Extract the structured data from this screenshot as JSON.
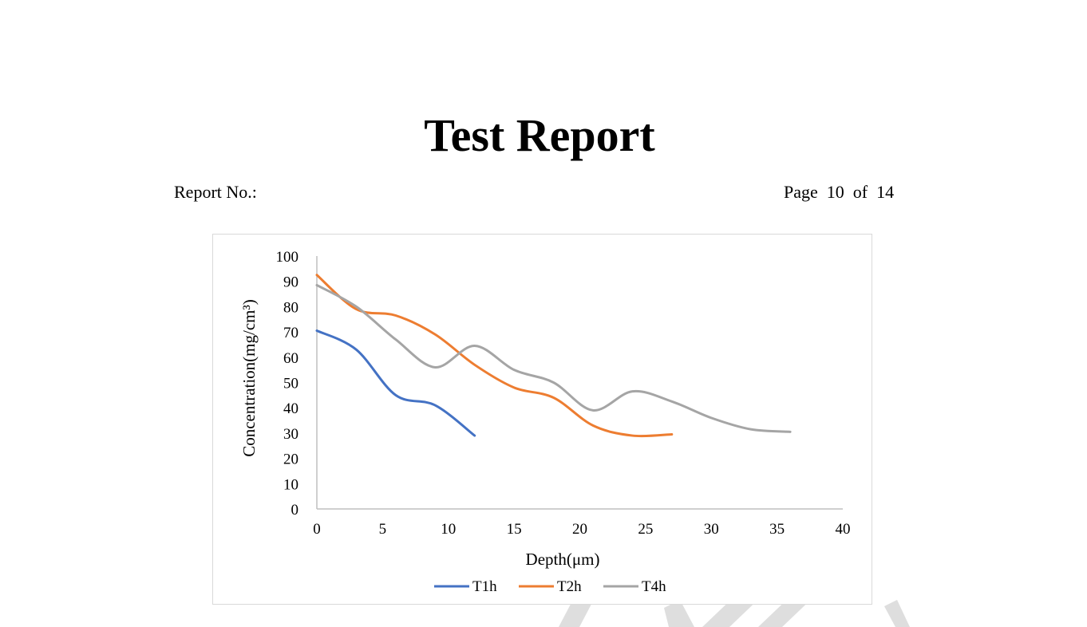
{
  "header": {
    "title": "Test Report",
    "report_no_label": "Report No.:",
    "page_word": "Page",
    "page_number": "10",
    "of_word": "of",
    "page_total": "14"
  },
  "chart_data": {
    "type": "line",
    "xlabel": "Depth(μm)",
    "ylabel": "Concentration(mg/cm³)",
    "xlim": [
      0,
      40
    ],
    "ylim": [
      0,
      100
    ],
    "xticks": [
      0,
      5,
      10,
      15,
      20,
      25,
      30,
      35,
      40
    ],
    "yticks": [
      0,
      10,
      20,
      30,
      40,
      50,
      60,
      70,
      80,
      90,
      100
    ],
    "grid": false,
    "legend_position": "bottom",
    "smooth": true,
    "series": [
      {
        "name": "T1h",
        "color": "#4472c4",
        "x": [
          0,
          3,
          6,
          9,
          12
        ],
        "y": [
          70.5,
          63,
          45,
          41,
          29
        ]
      },
      {
        "name": "T2h",
        "color": "#ed7d31",
        "x": [
          0,
          3,
          6,
          9,
          12,
          15,
          18,
          21,
          24,
          27
        ],
        "y": [
          92.5,
          79,
          76.5,
          69,
          57,
          48,
          44,
          33,
          29,
          29.5
        ]
      },
      {
        "name": "T4h",
        "color": "#a5a5a5",
        "x": [
          0,
          3,
          6,
          9,
          12,
          15,
          18,
          21,
          24,
          27,
          30,
          33,
          36
        ],
        "y": [
          88.5,
          80,
          67,
          56,
          64.5,
          55,
          50,
          39,
          46.5,
          42.5,
          36,
          31.5,
          30.5
        ]
      }
    ]
  },
  "watermark": {
    "color": "#dedede"
  }
}
